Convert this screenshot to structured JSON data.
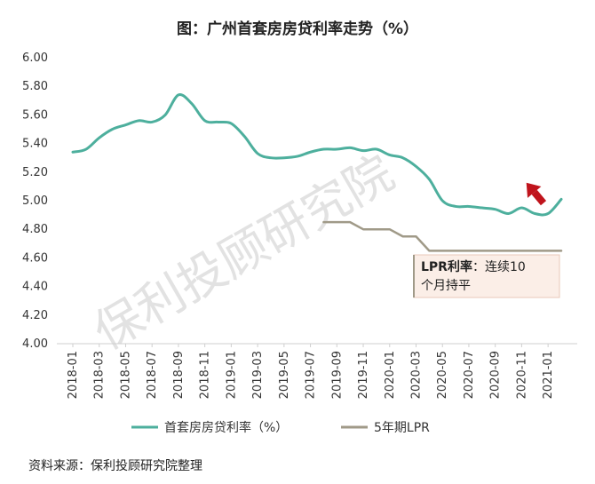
{
  "title": "图：广州首套房房贷利率走势（%）",
  "source": "资料来源：保利投顾研究院整理",
  "watermark": "保利投顾研究院",
  "callout": {
    "line1_bold": "LPR利率",
    "line1_rest": "：连续10",
    "line2": "个月持平"
  },
  "colors": {
    "mortgage": "#4daf9d",
    "lpr": "#a09a88",
    "arrow": "#c0141c",
    "callout_bg": "#fbeee7",
    "callout_border": "#e8c8b8"
  },
  "chart_data": {
    "type": "line",
    "y_ticks": [
      "6.00",
      "5.80",
      "5.60",
      "5.40",
      "5.20",
      "5.00",
      "4.80",
      "4.60",
      "4.40",
      "4.20",
      "4.00"
    ],
    "ylim": [
      4.0,
      6.0
    ],
    "x_tick_labels": [
      "2018-01",
      "2018-03",
      "2018-05",
      "2018-07",
      "2018-09",
      "2018-11",
      "2019-01",
      "2019-03",
      "2019-05",
      "2019-07",
      "2019-09",
      "2019-11",
      "2020-01",
      "2020-03",
      "2020-05",
      "2020-07",
      "2020-09",
      "2020-11",
      "2021-01"
    ],
    "x": [
      "2018-01",
      "2018-02",
      "2018-03",
      "2018-04",
      "2018-05",
      "2018-06",
      "2018-07",
      "2018-08",
      "2018-09",
      "2018-10",
      "2018-11",
      "2018-12",
      "2019-01",
      "2019-02",
      "2019-03",
      "2019-04",
      "2019-05",
      "2019-06",
      "2019-07",
      "2019-08",
      "2019-09",
      "2019-10",
      "2019-11",
      "2019-12",
      "2020-01",
      "2020-02",
      "2020-03",
      "2020-04",
      "2020-05",
      "2020-06",
      "2020-07",
      "2020-08",
      "2020-09",
      "2020-10",
      "2020-11",
      "2020-12",
      "2021-01",
      "2021-02"
    ],
    "series": [
      {
        "name": "首套房房贷利率（%）",
        "values": [
          5.34,
          5.36,
          5.44,
          5.5,
          5.53,
          5.56,
          5.55,
          5.6,
          5.74,
          5.68,
          5.56,
          5.55,
          5.54,
          5.45,
          5.33,
          5.3,
          5.3,
          5.31,
          5.34,
          5.36,
          5.36,
          5.37,
          5.35,
          5.36,
          5.32,
          5.3,
          5.24,
          5.15,
          5.0,
          4.96,
          4.96,
          4.95,
          4.94,
          4.91,
          4.95,
          4.91,
          4.91,
          5.01
        ]
      },
      {
        "name": "5年期LPR",
        "values": [
          null,
          null,
          null,
          null,
          null,
          null,
          null,
          null,
          null,
          null,
          null,
          null,
          null,
          null,
          null,
          null,
          null,
          null,
          null,
          4.85,
          4.85,
          4.85,
          4.8,
          4.8,
          4.8,
          4.75,
          4.75,
          4.65,
          4.65,
          4.65,
          4.65,
          4.65,
          4.65,
          4.65,
          4.65,
          4.65,
          4.65,
          4.65
        ]
      }
    ]
  }
}
